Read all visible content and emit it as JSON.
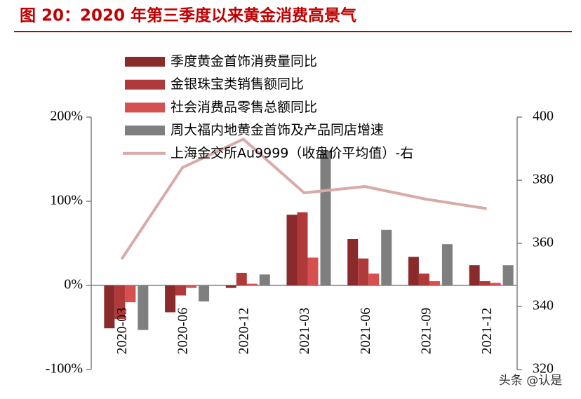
{
  "chart_data": {
    "type": "bar",
    "title": "图 20：2020 年第三季度以来黄金消费高景气",
    "watermark": "头条 @认是",
    "categories": [
      "2020-03",
      "2020-06",
      "2020-12",
      "2021-03",
      "2021-06",
      "2021-09",
      "2021-12"
    ],
    "series": [
      {
        "name": "季度黄金首饰消费量同比",
        "color": "#8b2a2a",
        "values": [
          -51,
          -32,
          -3,
          84,
          55,
          34,
          24
        ]
      },
      {
        "name": "金银珠宝类销售额同比",
        "color": "#b03a3a",
        "values": [
          -40,
          -12,
          15,
          87,
          32,
          14,
          5
        ]
      },
      {
        "name": "社会消费品零售总额同比",
        "color": "#d65050",
        "values": [
          -20,
          -3,
          2,
          33,
          14,
          5,
          3
        ]
      },
      {
        "name": "周大福内地黄金首饰及产品同店增速",
        "color": "#7f7f7f",
        "values": [
          -53,
          -19,
          13,
          160,
          66,
          49,
          24
        ]
      },
      {
        "name": "上海金交所Au9999（收盘价平均值）-右",
        "color": "#d8aaa8",
        "type": "line",
        "axis": "y2",
        "values": [
          355,
          384,
          393,
          376,
          378,
          374,
          371
        ]
      }
    ],
    "ylim": [
      -100,
      200
    ],
    "yticks": [
      {
        "value": -100,
        "label": "-100%"
      },
      {
        "value": 0,
        "label": "0%"
      },
      {
        "value": 100,
        "label": "100%"
      },
      {
        "value": 200,
        "label": "200%"
      }
    ],
    "y2lim": [
      320,
      400
    ],
    "y2ticks": [
      320,
      340,
      360,
      380,
      400
    ]
  }
}
